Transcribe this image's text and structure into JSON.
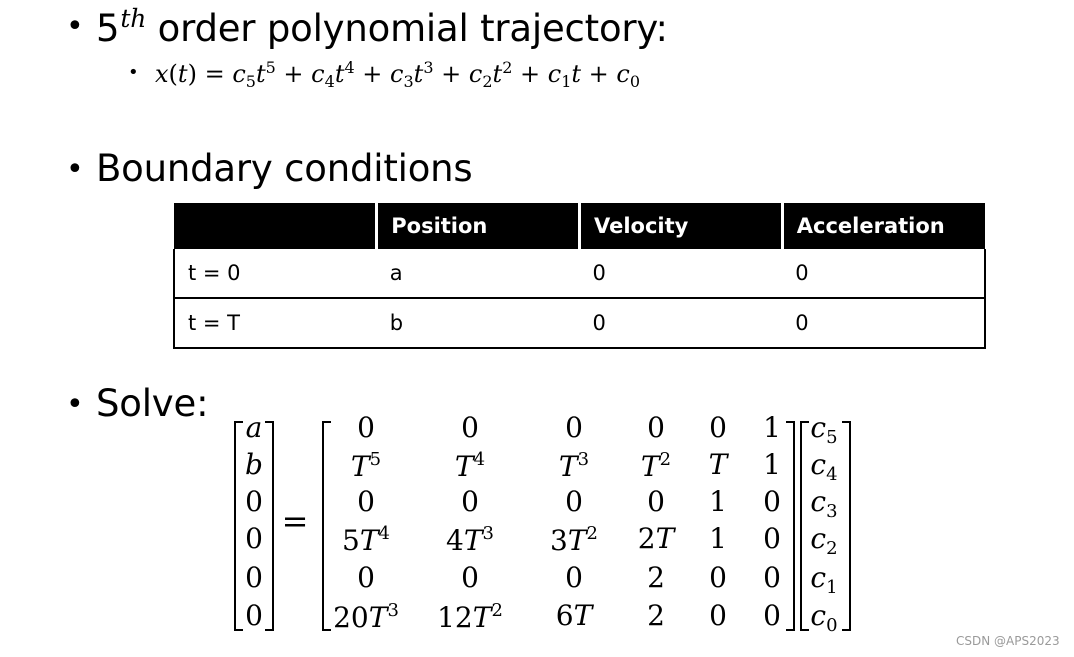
{
  "slide": {
    "bullet1": {
      "title_main": "5",
      "title_sup": "th",
      "title_rest": " order polynomial trajectory:",
      "equation_lhs": "x(t) = ",
      "equation_terms": [
        {
          "coef": "c",
          "sub": "5",
          "var": "t",
          "pow": "5"
        },
        {
          "coef": "c",
          "sub": "4",
          "var": "t",
          "pow": "4"
        },
        {
          "coef": "c",
          "sub": "3",
          "var": "t",
          "pow": "3"
        },
        {
          "coef": "c",
          "sub": "2",
          "var": "t",
          "pow": "2"
        },
        {
          "coef": "c",
          "sub": "1",
          "var": "t",
          "pow": ""
        },
        {
          "coef": "c",
          "sub": "0",
          "var": "",
          "pow": ""
        }
      ]
    },
    "bullet2": {
      "title": "Boundary conditions"
    },
    "table": {
      "headers": [
        "",
        "Position",
        "Velocity",
        "Acceleration"
      ],
      "rows": [
        [
          "t = 0",
          "a",
          "0",
          "0"
        ],
        [
          "t = T",
          "b",
          "0",
          "0"
        ]
      ]
    },
    "bullet3": {
      "title": "Solve:"
    },
    "matrix": {
      "lhs": [
        "a",
        "b",
        "0",
        "0",
        "0",
        "0"
      ],
      "equals": "=",
      "rows": [
        [
          "0",
          "0",
          "0",
          "0",
          "0",
          "1"
        ],
        [
          "T^5",
          "T^4",
          "T^3",
          "T^2",
          "T",
          "1"
        ],
        [
          "0",
          "0",
          "0",
          "0",
          "1",
          "0"
        ],
        [
          "5T^4",
          "4T^3",
          "3T^2",
          "2T",
          "1",
          "0"
        ],
        [
          "0",
          "0",
          "0",
          "2",
          "0",
          "0"
        ],
        [
          "20T^3",
          "12T^2",
          "6T",
          "2",
          "0",
          "0"
        ]
      ],
      "rhs": [
        "c_5",
        "c_4",
        "c_3",
        "c_2",
        "c_1",
        "c_0"
      ]
    },
    "watermark": "CSDN @APS2023"
  }
}
